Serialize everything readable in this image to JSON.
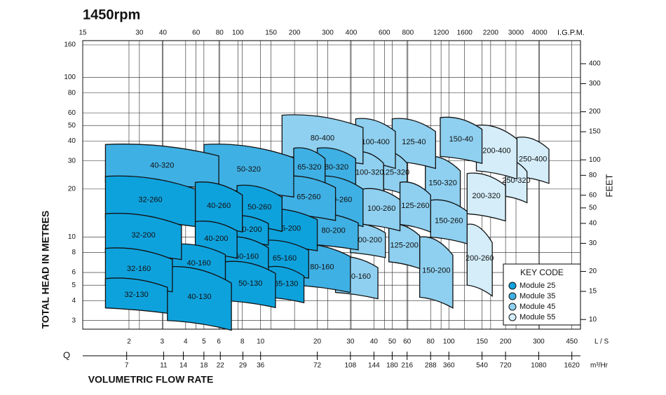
{
  "chart_data": {
    "type": "pump-coverage",
    "title": "1450rpm",
    "y_label": "TOTAL HEAD IN METRES",
    "y2_label": "FEET",
    "x_label": "VOLUMETRIC FLOW RATE",
    "x_symbol": "Q",
    "x_unit": "L / S",
    "x2_unit": "I.G.P.M.",
    "x3_unit": "m³/Hr",
    "legend_title": "KEY CODE",
    "xlim": [
      1.136,
      500
    ],
    "xticks": [
      2,
      3,
      4,
      5,
      6,
      8,
      10,
      20,
      30,
      40,
      50,
      60,
      80,
      100,
      150,
      200,
      300,
      450
    ],
    "x2lim": [
      15,
      6600
    ],
    "x2ticks": [
      15,
      30,
      40,
      60,
      80,
      100,
      150,
      200,
      300,
      400,
      600,
      800,
      1200,
      1600,
      2200,
      3000,
      4000
    ],
    "x3lim": [
      4.09,
      1800
    ],
    "x3ticks": [
      7,
      11,
      14,
      18,
      22,
      29,
      36,
      72,
      108,
      144,
      180,
      216,
      288,
      360,
      540,
      720,
      1080,
      1620
    ],
    "ylim": [
      2.65,
      170
    ],
    "yticks": [
      3,
      4,
      5,
      6,
      8,
      10,
      20,
      30,
      40,
      50,
      60,
      80,
      100,
      160
    ],
    "y2lim": [
      8.7,
      558
    ],
    "y2ticks": [
      10,
      15,
      20,
      30,
      40,
      50,
      60,
      80,
      100,
      150,
      200,
      300,
      400
    ],
    "log_scale": true,
    "grid": true,
    "series": [
      {
        "name": "Module 25",
        "color": "#0ea2dd",
        "pumps": [
          {
            "label": "32-130",
            "q": [
              1.5,
              3.2
            ],
            "head": [
              3.6,
              5.5
            ]
          },
          {
            "label": "32-160",
            "q": [
              1.5,
              3.4
            ],
            "head": [
              5,
              8.5
            ]
          },
          {
            "label": "32-200",
            "q": [
              1.5,
              3.8
            ],
            "head": [
              8,
              14
            ]
          },
          {
            "label": "32-260",
            "q": [
              1.5,
              4.5
            ],
            "head": [
              13,
              24
            ]
          },
          {
            "label": "40-130",
            "q": [
              3.2,
              7
            ],
            "head": [
              3,
              6.5
            ]
          },
          {
            "label": "40-160",
            "q": [
              3.4,
              6.5
            ],
            "head": [
              5.5,
              9
            ]
          },
          {
            "label": "40-200",
            "q": [
              4.5,
              7.5
            ],
            "head": [
              8,
              12.5
            ]
          },
          {
            "label": "40-260",
            "q": [
              4.5,
              8
            ],
            "head": [
              12,
              22
            ]
          },
          {
            "label": "50-130",
            "q": [
              6.5,
              12
            ],
            "head": [
              4,
              7
            ]
          },
          {
            "label": "50-160",
            "q": [
              6.5,
              11
            ],
            "head": [
              6,
              10
            ]
          },
          {
            "label": "50-200",
            "q": [
              7,
              11
            ],
            "head": [
              9.5,
              13.5
            ]
          },
          {
            "label": "50-260",
            "q": [
              7.5,
              13
            ],
            "head": [
              12,
              21
            ]
          },
          {
            "label": "65-130",
            "q": [
              11,
              17
            ],
            "head": [
              4.2,
              6.5
            ]
          },
          {
            "label": "65-160",
            "q": [
              10,
              18
            ],
            "head": [
              6,
              9.5
            ]
          },
          {
            "label": "65-200",
            "q": [
              10,
              20
            ],
            "head": [
              9,
              15
            ]
          }
        ]
      },
      {
        "name": "Module 35",
        "color": "#3fb0e4",
        "pumps": [
          {
            "label": "40-320",
            "q": [
              1.5,
              6
            ],
            "head": [
              22,
              38
            ]
          },
          {
            "label": "50-320",
            "q": [
              5,
              15
            ],
            "head": [
              20,
              38
            ]
          },
          {
            "label": "65-260",
            "q": [
              13,
              25
            ],
            "head": [
              14,
              24
            ]
          },
          {
            "label": "65-320",
            "q": [
              15,
              22
            ],
            "head": [
              22,
              36
            ]
          },
          {
            "label": "80-160",
            "q": [
              15,
              30
            ],
            "head": [
              5,
              9
            ]
          },
          {
            "label": "80-200",
            "q": [
              18,
              33
            ],
            "head": [
              9,
              14
            ]
          },
          {
            "label": "80-260",
            "q": [
              20,
              35
            ],
            "head": [
              13,
              24
            ]
          },
          {
            "label": "80-320",
            "q": [
              20,
              32
            ],
            "head": [
              22,
              36
            ]
          }
        ]
      },
      {
        "name": "Module 45",
        "color": "#8fd0f0",
        "pumps": [
          {
            "label": "80-400",
            "q": [
              13,
              35
            ],
            "head": [
              32,
              58
            ]
          },
          {
            "label": "100-160",
            "q": [
              25,
              42
            ],
            "head": [
              4.5,
              7.5
            ]
          },
          {
            "label": "100-200",
            "q": [
              30,
              46
            ],
            "head": [
              8,
              12
            ]
          },
          {
            "label": "100-260",
            "q": [
              35,
              55
            ],
            "head": [
              12,
              20
            ]
          },
          {
            "label": "100-320",
            "q": [
              32,
              45
            ],
            "head": [
              20,
              34
            ]
          },
          {
            "label": "100-400",
            "q": [
              32,
              52
            ],
            "head": [
              30,
              55
            ]
          },
          {
            "label": "125-200",
            "q": [
              48,
              70
            ],
            "head": [
              7,
              12
            ]
          },
          {
            "label": "125-260",
            "q": [
              55,
              80
            ],
            "head": [
              12,
              22
            ]
          },
          {
            "label": "125-320",
            "q": [
              45,
              60
            ],
            "head": [
              20,
              34
            ]
          },
          {
            "label": "125-40",
            "q": [
              50,
              85
            ],
            "head": [
              30,
              55
            ]
          },
          {
            "label": "150-200",
            "q": [
              70,
              105
            ],
            "head": [
              4.2,
              10
            ]
          },
          {
            "label": "150-260",
            "q": [
              80,
              125
            ],
            "head": [
              10,
              17
            ]
          },
          {
            "label": "150-320",
            "q": [
              75,
              115
            ],
            "head": [
              16,
              32
            ]
          },
          {
            "label": "150-40",
            "q": [
              90,
              150
            ],
            "head": [
              32,
              56
            ]
          }
        ]
      },
      {
        "name": "Module 55",
        "color": "#d4edf9",
        "pumps": [
          {
            "label": "200-260",
            "q": [
              125,
              170
            ],
            "head": [
              5,
              12
            ]
          },
          {
            "label": "200-320",
            "q": [
              125,
              200
            ],
            "head": [
              14,
              25
            ]
          },
          {
            "label": "200-400",
            "q": [
              140,
              230
            ],
            "head": [
              26,
              50
            ]
          },
          {
            "label": "250-320",
            "q": [
              200,
              260
            ],
            "head": [
              18,
              30
            ]
          },
          {
            "label": "250-400",
            "q": [
              230,
              340
            ],
            "head": [
              24,
              42
            ]
          }
        ]
      }
    ]
  }
}
